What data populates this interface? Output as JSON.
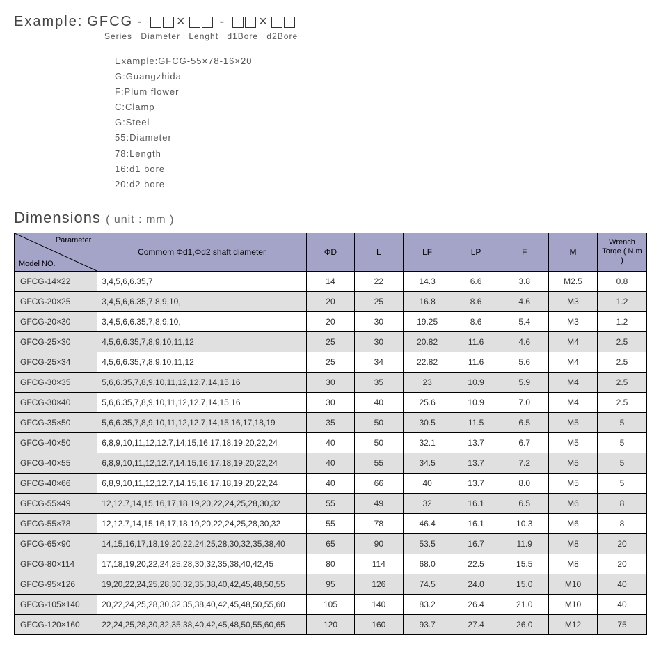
{
  "example": {
    "prefix": "Example:",
    "series": "GFCG",
    "dash": "-",
    "times": "×",
    "sub_labels": "Series  Diameter Lenght   d1Bore   d2Bore"
  },
  "legend": [
    "Example:GFCG-55×78-16×20",
    "G:Guangzhida",
    "F:Plum flower",
    "C:Clamp",
    "G:Steel",
    "55:Diameter",
    "78:Length",
    "16:d1 bore",
    "20:d2 bore"
  ],
  "dimensions_title": "Dimensions",
  "dimensions_unit": "( unit : mm )",
  "columns": {
    "diag_top": "Parameter",
    "diag_bot": "Model NO.",
    "shaft": "Commom  Φd1,Φd2 shaft diameter",
    "d": "ΦD",
    "l": "L",
    "lf": "LF",
    "lp": "LP",
    "f": "F",
    "m": "M",
    "torque": "Wrench Torqe ( N.m )"
  },
  "rows": [
    {
      "model": "GFCG-14×22",
      "shaft": "3,4,5,6,6.35,7",
      "d": "14",
      "l": "22",
      "lf": "14.3",
      "lp": "6.6",
      "f": "3.8",
      "m": "M2.5",
      "t": "0.8"
    },
    {
      "model": "GFCG-20×25",
      "shaft": "3,4,5,6,6.35,7,8,9,10,",
      "d": "20",
      "l": "25",
      "lf": "16.8",
      "lp": "8.6",
      "f": "4.6",
      "m": "M3",
      "t": "1.2"
    },
    {
      "model": "GFCG-20×30",
      "shaft": "3,4,5,6,6.35,7,8,9,10,",
      "d": "20",
      "l": "30",
      "lf": "19.25",
      "lp": "8.6",
      "f": "5.4",
      "m": "M3",
      "t": "1.2"
    },
    {
      "model": "GFCG-25×30",
      "shaft": "4,5,6,6.35,7,8,9,10,11,12",
      "d": "25",
      "l": "30",
      "lf": "20.82",
      "lp": "11.6",
      "f": "4.6",
      "m": "M4",
      "t": "2.5"
    },
    {
      "model": "GFCG-25×34",
      "shaft": "4,5,6,6.35,7,8,9,10,11,12",
      "d": "25",
      "l": "34",
      "lf": "22.82",
      "lp": "11.6",
      "f": "5.6",
      "m": "M4",
      "t": "2.5"
    },
    {
      "model": "GFCG-30×35",
      "shaft": "5,6,6.35,7,8,9,10,11,12,12.7,14,15,16",
      "d": "30",
      "l": "35",
      "lf": "23",
      "lp": "10.9",
      "f": "5.9",
      "m": "M4",
      "t": "2.5"
    },
    {
      "model": "GFCG-30×40",
      "shaft": "5,6,6.35,7,8,9,10,11,12,12.7,14,15,16",
      "d": "30",
      "l": "40",
      "lf": "25.6",
      "lp": "10.9",
      "f": "7.0",
      "m": "M4",
      "t": "2.5"
    },
    {
      "model": "GFCG-35×50",
      "shaft": "5,6,6.35,7,8,9,10,11,12,12.7,14,15,16,17,18,19",
      "d": "35",
      "l": "50",
      "lf": "30.5",
      "lp": "11.5",
      "f": "6.5",
      "m": "M5",
      "t": "5"
    },
    {
      "model": "GFCG-40×50",
      "shaft": "6,8,9,10,11,12,12.7,14,15,16,17,18,19,20,22,24",
      "d": "40",
      "l": "50",
      "lf": "32.1",
      "lp": "13.7",
      "f": "6.7",
      "m": "M5",
      "t": "5"
    },
    {
      "model": "GFCG-40×55",
      "shaft": "6,8,9,10,11,12,12.7,14,15,16,17,18,19,20,22,24",
      "d": "40",
      "l": "55",
      "lf": "34.5",
      "lp": "13.7",
      "f": "7.2",
      "m": "M5",
      "t": "5"
    },
    {
      "model": "GFCG-40×66",
      "shaft": "6,8,9,10,11,12,12.7,14,15,16,17,18,19,20,22,24",
      "d": "40",
      "l": "66",
      "lf": "40",
      "lp": "13.7",
      "f": "8.0",
      "m": "M5",
      "t": "5"
    },
    {
      "model": "GFCG-55×49",
      "shaft": "12,12.7,14,15,16,17,18,19,20,22,24,25,28,30,32",
      "d": "55",
      "l": "49",
      "lf": "32",
      "lp": "16.1",
      "f": "6.5",
      "m": "M6",
      "t": "8"
    },
    {
      "model": "GFCG-55×78",
      "shaft": "12,12.7,14,15,16,17,18,19,20,22,24,25,28,30,32",
      "d": "55",
      "l": "78",
      "lf": "46.4",
      "lp": "16.1",
      "f": "10.3",
      "m": "M6",
      "t": "8"
    },
    {
      "model": "GFCG-65×90",
      "shaft": "14,15,16,17,18,19,20,22,24,25,28,30,32,35,38,40",
      "d": "65",
      "l": "90",
      "lf": "53.5",
      "lp": "16.7",
      "f": "11.9",
      "m": "M8",
      "t": "20"
    },
    {
      "model": "GFCG-80×114",
      "shaft": "17,18,19,20,22,24,25,28,30,32,35,38,40,42,45",
      "d": "80",
      "l": "114",
      "lf": "68.0",
      "lp": "22.5",
      "f": "15.5",
      "m": "M8",
      "t": "20"
    },
    {
      "model": "GFCG-95×126",
      "shaft": "19,20,22,24,25,28,30,32,35,38,40,42,45,48,50,55",
      "d": "95",
      "l": "126",
      "lf": "74.5",
      "lp": "24.0",
      "f": "15.0",
      "m": "M10",
      "t": "40"
    },
    {
      "model": "GFCG-105×140",
      "shaft": "20,22,24,25,28,30,32,35,38,40,42,45,48,50,55,60",
      "d": "105",
      "l": "140",
      "lf": "83.2",
      "lp": "26.4",
      "f": "21.0",
      "m": "M10",
      "t": "40"
    },
    {
      "model": "GFCG-120×160",
      "shaft": "22,24,25,28,30,32,35,38,40,42,45,48,50,55,60,65",
      "d": "120",
      "l": "160",
      "lf": "93.7",
      "lp": "27.4",
      "f": "26.0",
      "m": "M12",
      "t": "75"
    }
  ]
}
